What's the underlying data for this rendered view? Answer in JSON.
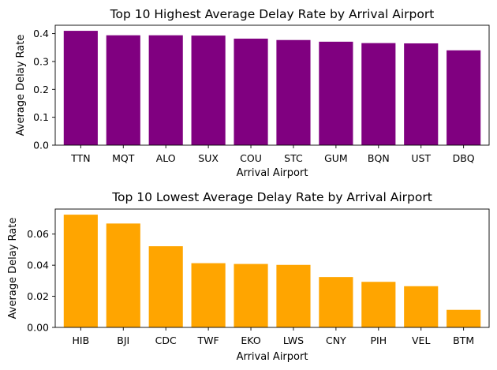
{
  "chart_data": [
    {
      "type": "bar",
      "title": "Top 10 Highest Average Delay Rate by Arrival Airport",
      "xlabel": "Arrival Airport",
      "ylabel": "Average Delay Rate",
      "categories": [
        "TTN",
        "MQT",
        "ALO",
        "SUX",
        "COU",
        "STC",
        "GUM",
        "BQN",
        "UST",
        "DBQ"
      ],
      "values": [
        0.41,
        0.394,
        0.394,
        0.393,
        0.382,
        0.377,
        0.371,
        0.366,
        0.365,
        0.34
      ],
      "ylim": [
        0,
        0.43
      ],
      "yticks": [
        0.0,
        0.1,
        0.2,
        0.3,
        0.4
      ],
      "ytick_labels": [
        "0.0",
        "0.1",
        "0.2",
        "0.3",
        "0.4"
      ],
      "color": "#800080",
      "grid": false
    },
    {
      "type": "bar",
      "title": "Top 10 Lowest Average Delay Rate by Arrival Airport",
      "xlabel": "Arrival Airport",
      "ylabel": "Average Delay Rate",
      "categories": [
        "HIB",
        "BJI",
        "CDC",
        "TWF",
        "EKO",
        "LWS",
        "CNY",
        "PIH",
        "VEL",
        "BTM"
      ],
      "values": [
        0.0725,
        0.0668,
        0.0522,
        0.0413,
        0.0408,
        0.0402,
        0.0324,
        0.0293,
        0.0265,
        0.0113
      ],
      "ylim": [
        0,
        0.0761
      ],
      "yticks": [
        0.0,
        0.02,
        0.04,
        0.06
      ],
      "ytick_labels": [
        "0.00",
        "0.02",
        "0.04",
        "0.06"
      ],
      "color": "#FFA500",
      "grid": false
    }
  ]
}
